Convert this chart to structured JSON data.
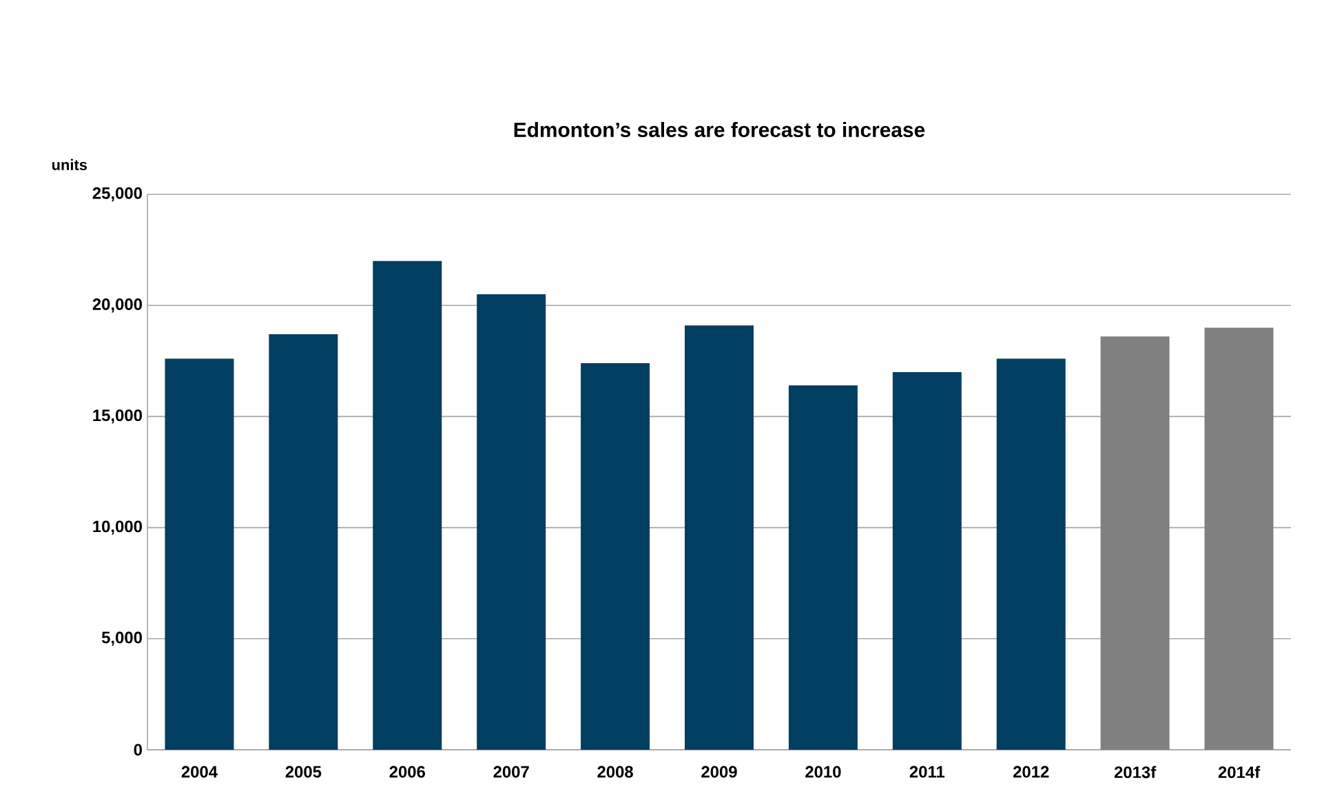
{
  "chart_data": {
    "type": "bar",
    "title": "Edmonton’s sales are forecast to increase",
    "ylabel": "units",
    "categories": [
      "2004",
      "2005",
      "2006",
      "2007",
      "2008",
      "2009",
      "2010",
      "2011",
      "2012",
      "2013f",
      "2014f"
    ],
    "values": [
      17600,
      18700,
      22000,
      20500,
      17400,
      19100,
      16400,
      17000,
      17600,
      18600,
      19000
    ],
    "colors": [
      "#003f62",
      "#003f62",
      "#003f62",
      "#003f62",
      "#003f62",
      "#003f62",
      "#003f62",
      "#003f62",
      "#003f62",
      "#808080",
      "#808080"
    ],
    "ylim": [
      0,
      25000
    ],
    "yticks": [
      {
        "value": 0,
        "label": "0"
      },
      {
        "value": 5000,
        "label": "5,000"
      },
      {
        "value": 10000,
        "label": "10,000"
      },
      {
        "value": 15000,
        "label": "15,000"
      },
      {
        "value": 20000,
        "label": "20,000"
      },
      {
        "value": 25000,
        "label": "25,000"
      }
    ],
    "grid": "y"
  }
}
